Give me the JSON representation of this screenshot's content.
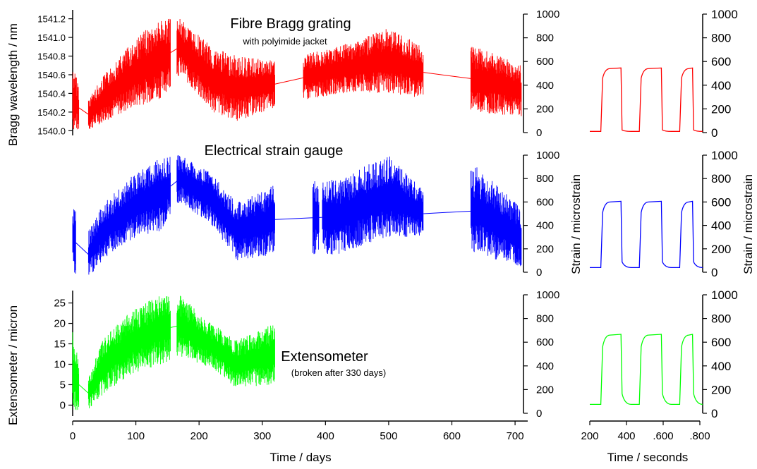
{
  "chart_data": [
    {
      "type": "line",
      "id": "long-term",
      "x_unit_label": "Time / days",
      "xlim": [
        0,
        720
      ],
      "xticks": [
        0,
        100,
        200,
        300,
        400,
        500,
        600,
        700
      ],
      "panels": [
        {
          "name": "Fibre Bragg grating",
          "subtitle": "with polyimide jacket",
          "color": "#ff0000",
          "left_axis": {
            "label": "Bragg wavelength / nm",
            "ticks": [
              "1540.0",
              "1540.2",
              "1540.4",
              "1540.6",
              "1540.8",
              "1541.0",
              "1541.2"
            ],
            "ylim": [
              1539.98,
              1541.25
            ]
          },
          "right_axis": {
            "ticks": [
              "0",
              "200",
              "400",
              "600",
              "800",
              "1000"
            ],
            "ylim": [
              0,
              1000
            ]
          },
          "segments": [
            [
              0,
              10
            ],
            [
              25,
              155
            ],
            [
              165,
              320
            ],
            [
              365,
              380
            ],
            [
              380,
              395
            ],
            [
              395,
              555
            ],
            [
              630,
              710
            ]
          ],
          "envelope": [
            {
              "x": 0,
              "lo": 1540.0,
              "hi": 1540.7
            },
            {
              "x": 20,
              "lo": 1539.98,
              "hi": 1540.3
            },
            {
              "x": 50,
              "lo": 1540.1,
              "hi": 1540.6
            },
            {
              "x": 100,
              "lo": 1540.25,
              "hi": 1541.0
            },
            {
              "x": 140,
              "lo": 1540.35,
              "hi": 1541.2
            },
            {
              "x": 170,
              "lo": 1540.6,
              "hi": 1541.2
            },
            {
              "x": 220,
              "lo": 1540.2,
              "hi": 1540.9
            },
            {
              "x": 260,
              "lo": 1540.1,
              "hi": 1540.8
            },
            {
              "x": 320,
              "lo": 1540.25,
              "hi": 1540.75
            },
            {
              "x": 420,
              "lo": 1540.4,
              "hi": 1540.9
            },
            {
              "x": 500,
              "lo": 1540.4,
              "hi": 1541.1
            },
            {
              "x": 555,
              "lo": 1540.35,
              "hi": 1540.9
            },
            {
              "x": 640,
              "lo": 1540.2,
              "hi": 1540.9
            },
            {
              "x": 710,
              "lo": 1540.15,
              "hi": 1540.7
            }
          ]
        },
        {
          "name": "Electrical strain gauge",
          "subtitle": "",
          "color": "#0000ff",
          "right_axis": {
            "ticks": [
              "0",
              "200",
              "400",
              "600",
              "800",
              "1000"
            ],
            "ylim": [
              0,
              1000
            ]
          },
          "segments": [
            [
              0,
              5
            ],
            [
              25,
              155
            ],
            [
              165,
              320
            ],
            [
              380,
              390
            ],
            [
              395,
              555
            ],
            [
              630,
              710
            ]
          ],
          "envelope": [
            {
              "x": 0,
              "lo": 0,
              "hi": 600
            },
            {
              "x": 20,
              "lo": -80,
              "hi": 300
            },
            {
              "x": 50,
              "lo": 120,
              "hi": 600
            },
            {
              "x": 100,
              "lo": 300,
              "hi": 850
            },
            {
              "x": 140,
              "lo": 350,
              "hi": 990
            },
            {
              "x": 170,
              "lo": 600,
              "hi": 1000
            },
            {
              "x": 220,
              "lo": 400,
              "hi": 850
            },
            {
              "x": 260,
              "lo": 100,
              "hi": 600
            },
            {
              "x": 320,
              "lo": 150,
              "hi": 750
            },
            {
              "x": 420,
              "lo": 150,
              "hi": 800
            },
            {
              "x": 500,
              "lo": 300,
              "hi": 1000
            },
            {
              "x": 555,
              "lo": 300,
              "hi": 700
            },
            {
              "x": 640,
              "lo": 150,
              "hi": 900
            },
            {
              "x": 710,
              "lo": 50,
              "hi": 550
            }
          ]
        },
        {
          "name": "Extensometer",
          "subtitle": "(broken after 330 days)",
          "color": "#00ff00",
          "left_axis": {
            "label": "Extensometer / micron",
            "ticks": [
              "0",
              "5",
              "10",
              "15",
              "20",
              "25"
            ],
            "ylim": [
              -2,
              27
            ]
          },
          "right_axis": {
            "ticks": [
              "0",
              "200",
              "400",
              "600",
              "800",
              "1000"
            ],
            "ylim": [
              0,
              1000
            ]
          },
          "segments": [
            [
              0,
              10
            ],
            [
              25,
              155
            ],
            [
              165,
              320
            ]
          ],
          "envelope": [
            {
              "x": 0,
              "lo": -1,
              "hi": 18
            },
            {
              "x": 20,
              "lo": -2,
              "hi": 5
            },
            {
              "x": 50,
              "lo": 3,
              "hi": 17
            },
            {
              "x": 100,
              "lo": 8,
              "hi": 24
            },
            {
              "x": 140,
              "lo": 10,
              "hi": 27
            },
            {
              "x": 170,
              "lo": 12,
              "hi": 27
            },
            {
              "x": 220,
              "lo": 9,
              "hi": 20
            },
            {
              "x": 260,
              "lo": 4,
              "hi": 16
            },
            {
              "x": 320,
              "lo": 5,
              "hi": 20
            }
          ]
        }
      ],
      "right_label": "Strain / microstrain"
    },
    {
      "type": "line",
      "id": "short-term",
      "x_unit_label": "Time / seconds",
      "xlim": [
        200,
        800
      ],
      "xticks": [
        200,
        400,
        600,
        800
      ],
      "xtick_labels": [
        "200",
        "400",
        ".600",
        ".800"
      ],
      "right_label": "Strain / microstrain",
      "y_ticks": [
        "0",
        "200",
        "400",
        "600",
        "800",
        "1000"
      ],
      "ylim": [
        0,
        1000
      ],
      "series": [
        {
          "name": "Fibre Bragg grating",
          "color": "#ff0000",
          "low": 10,
          "high": 540
        },
        {
          "name": "Electrical strain gauge",
          "color": "#0000ff",
          "low": 40,
          "high": 600
        },
        {
          "name": "Extensometer",
          "color": "#00ff00",
          "low": 75,
          "high": 660
        }
      ],
      "step_cycles": [
        [
          270,
          370
        ],
        [
          480,
          590
        ],
        [
          700,
          760
        ]
      ]
    }
  ]
}
